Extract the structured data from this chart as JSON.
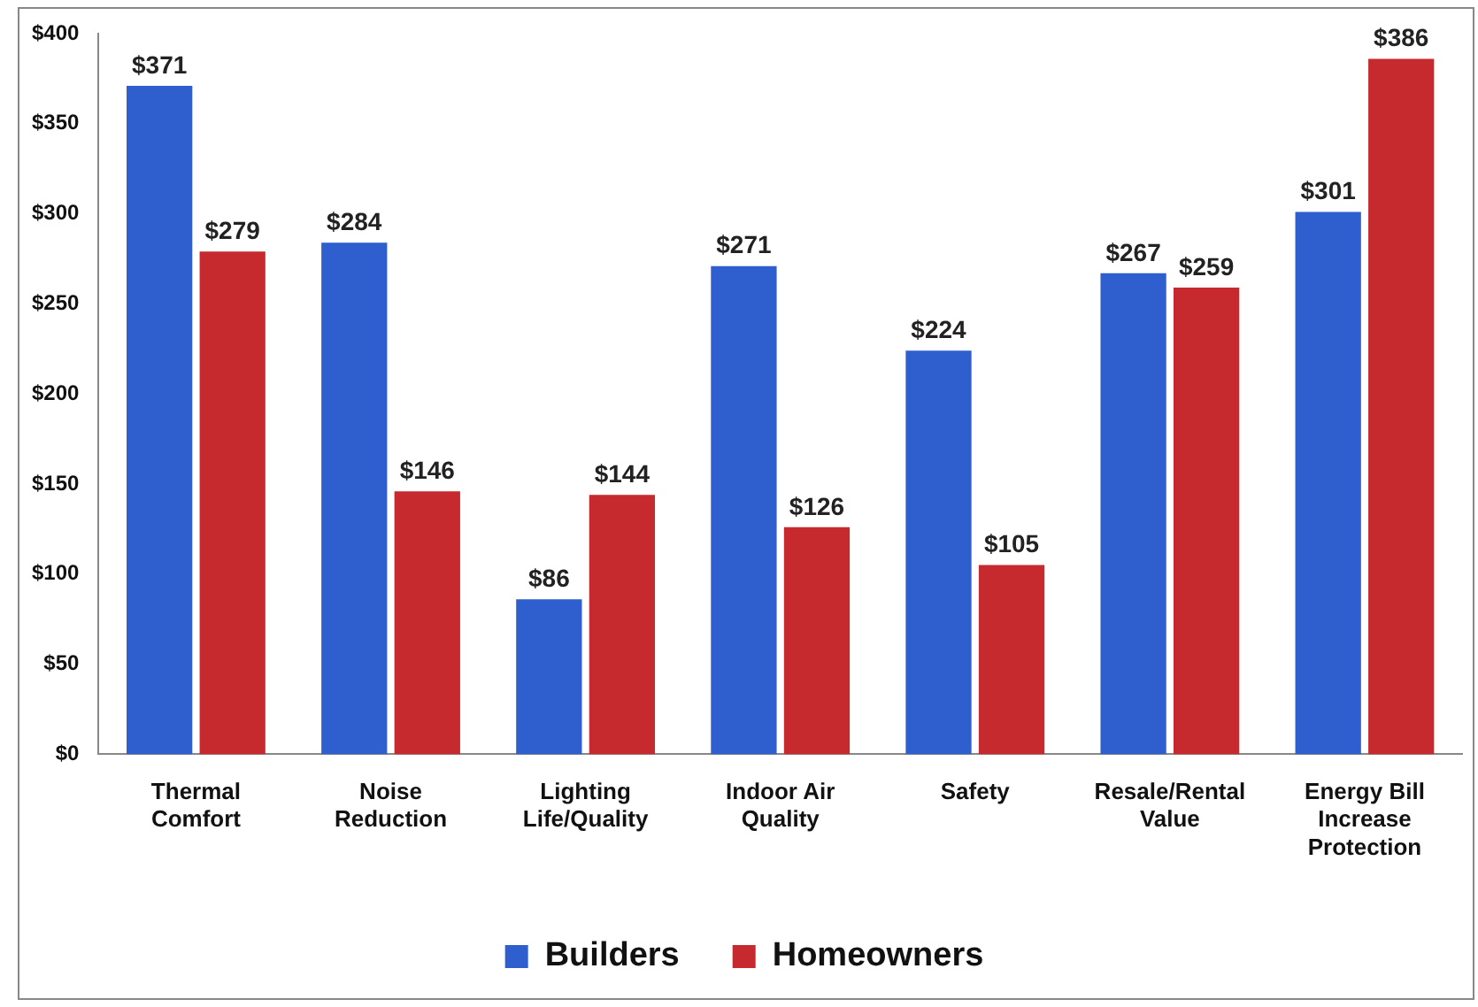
{
  "chart_data": {
    "type": "bar",
    "categories": [
      "Thermal Comfort",
      "Noise Reduction",
      "Lighting Life/Quality",
      "Indoor Air Quality",
      "Safety",
      "Resale/Rental Value",
      "Energy Bill Increase Protection"
    ],
    "series": [
      {
        "name": "Builders",
        "color": "#2f5fcf",
        "values": [
          371,
          284,
          86,
          271,
          224,
          267,
          301
        ],
        "value_labels": [
          "$371",
          "$284",
          "$86",
          "$271",
          "$224",
          "$267",
          "$301"
        ]
      },
      {
        "name": "Homeowners",
        "color": "#c62a2e",
        "values": [
          279,
          146,
          144,
          126,
          105,
          259,
          386
        ],
        "value_labels": [
          "$279",
          "$146",
          "$144",
          "$126",
          "$105",
          "$259",
          "$386"
        ]
      }
    ],
    "ylim": [
      0,
      400
    ],
    "yticks": [
      {
        "value": 0,
        "label": "$0"
      },
      {
        "value": 50,
        "label": "$50"
      },
      {
        "value": 100,
        "label": "$100"
      },
      {
        "value": 150,
        "label": "$150"
      },
      {
        "value": 200,
        "label": "$200"
      },
      {
        "value": 250,
        "label": "$250"
      },
      {
        "value": 300,
        "label": "$300"
      },
      {
        "value": 350,
        "label": "$350"
      },
      {
        "value": 400,
        "label": "$400"
      }
    ],
    "grid": false,
    "legend": "bottom"
  }
}
